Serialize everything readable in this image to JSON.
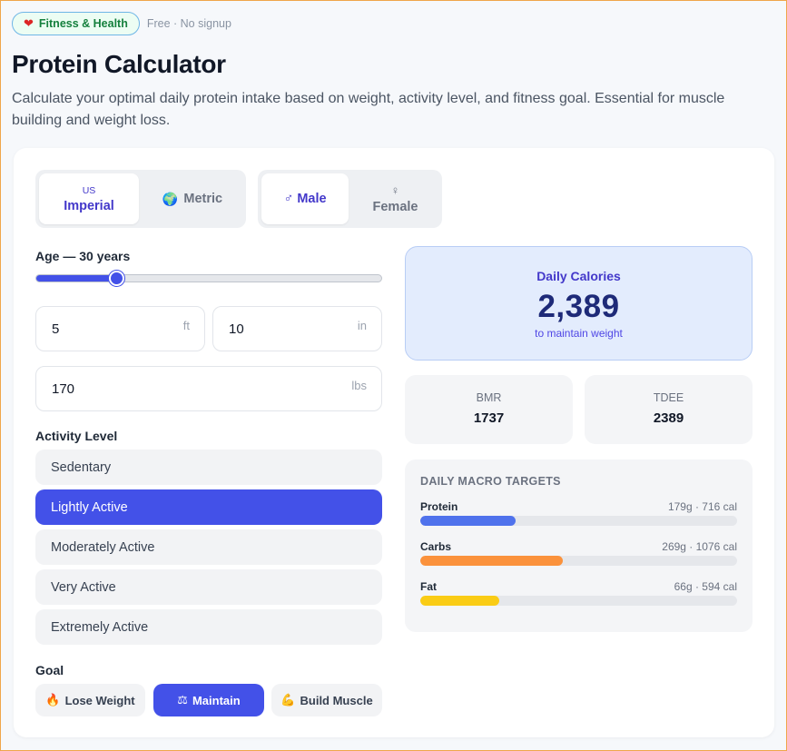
{
  "header": {
    "badge_label": "Fitness & Health",
    "badge_icon": "heart-icon",
    "free_text": "Free · No signup",
    "title": "Protein Calculator",
    "subtitle": "Calculate your optimal daily protein intake based on weight, activity level, and fitness goal. Essential for muscle building and weight loss."
  },
  "units": {
    "imperial_small": "US",
    "imperial_label": "Imperial",
    "metric_label": "Metric",
    "metric_icon": "globe-icon",
    "selected": "imperial"
  },
  "sex": {
    "male_label": "Male",
    "male_symbol": "♂",
    "female_label": "Female",
    "female_symbol": "♀",
    "selected": "male"
  },
  "age": {
    "label": "Age — 30 years",
    "value": 30,
    "min": 15,
    "max": 80
  },
  "height": {
    "feet": "5",
    "feet_unit": "ft",
    "inches": "10",
    "inches_unit": "in"
  },
  "weight": {
    "value": "170",
    "unit": "lbs"
  },
  "activity": {
    "label": "Activity Level",
    "options": [
      "Sedentary",
      "Lightly Active",
      "Moderately Active",
      "Very Active",
      "Extremely Active"
    ],
    "selected_index": 1
  },
  "goal": {
    "label": "Goal",
    "options": [
      {
        "label": "Lose Weight",
        "icon": "🔥"
      },
      {
        "label": "Maintain",
        "icon": "⚖"
      },
      {
        "label": "Build Muscle",
        "icon": "💪"
      }
    ],
    "selected_index": 1
  },
  "results": {
    "calories_title": "Daily Calories",
    "calories_value": "2,389",
    "calories_sub": "to maintain weight",
    "bmr_label": "BMR",
    "bmr_value": "1737",
    "tdee_label": "TDEE",
    "tdee_value": "2389"
  },
  "macros": {
    "title": "DAILY MACRO TARGETS",
    "items": [
      {
        "name": "Protein",
        "amount": "179g · 716 cal",
        "fraction": 0.3,
        "color": "#4f72ec"
      },
      {
        "name": "Carbs",
        "amount": "269g · 1076 cal",
        "fraction": 0.45,
        "color": "#fb923c"
      },
      {
        "name": "Fat",
        "amount": "66g · 594 cal",
        "fraction": 0.25,
        "color": "#facc15"
      }
    ]
  },
  "colors": {
    "accent": "#4351e8",
    "badge_green": "#15803d"
  }
}
